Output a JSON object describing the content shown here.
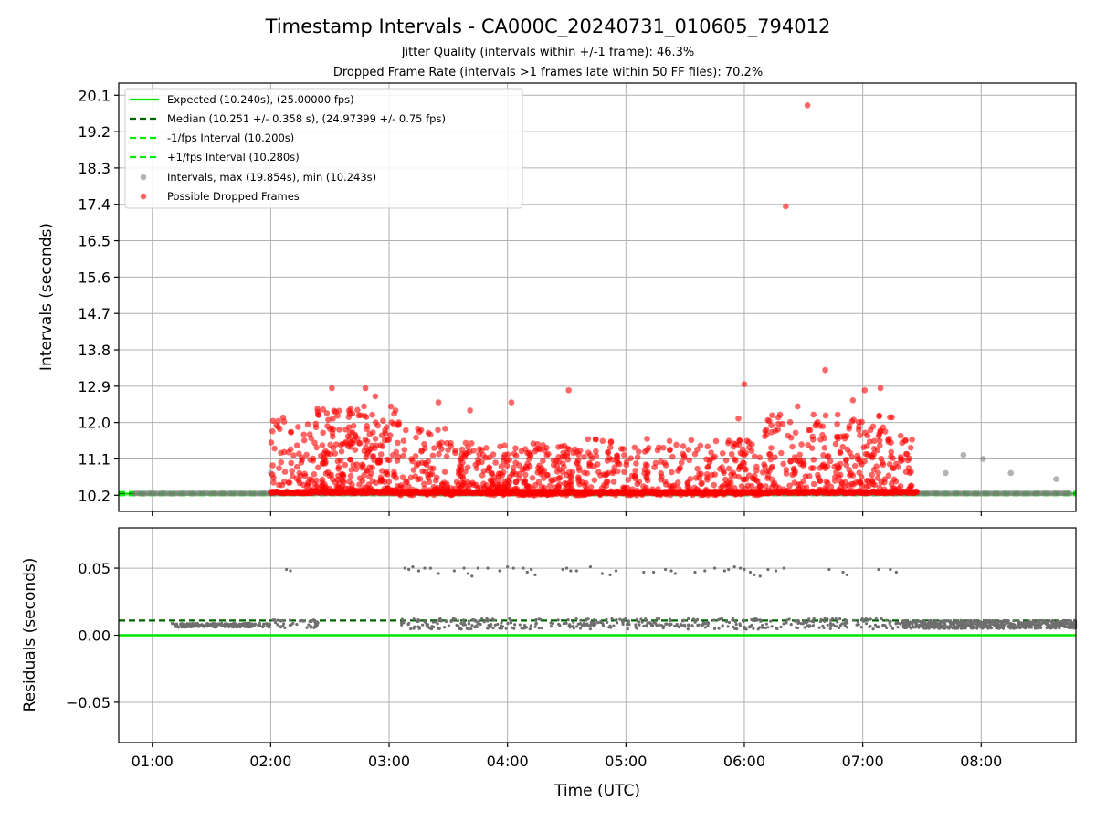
{
  "chart_data": [
    {
      "type": "scatter",
      "title": "Timestamp Intervals - CA000C_20240731_010605_794012",
      "subtitle_lines": [
        "Jitter Quality (intervals within +/-1 frame): 46.3%",
        "Dropped Frame Rate (intervals >1 frames late within 50 FF files): 70.2%"
      ],
      "xlabel": "",
      "ylabel": "Intervals (seconds)",
      "xlim": [
        "00:43",
        "08:48"
      ],
      "ylim": [
        9.8,
        20.4
      ],
      "y_ticks": [
        "10.2",
        "11.1",
        "12.0",
        "12.9",
        "13.8",
        "14.7",
        "15.6",
        "16.5",
        "17.4",
        "18.3",
        "19.2",
        "20.1"
      ],
      "x_ticks": [
        "01:00",
        "02:00",
        "03:00",
        "04:00",
        "05:00",
        "06:00",
        "07:00",
        "08:00"
      ],
      "grid": true,
      "legend_position": "top-left",
      "legend": [
        "Expected (10.240s), (25.00000 fps)",
        "Median (10.251 +/- 0.358 s), (24.97399 +/- 0.75 fps)",
        "-1/fps Interval (10.200s)",
        "+1/fps Interval (10.280s)",
        "Intervals, max (19.854s), min (10.243s)",
        "Possible Dropped Frames"
      ],
      "lines": {
        "expected": 10.24,
        "median": 10.251,
        "minus_1fps": 10.2,
        "plus_1fps": 10.28
      },
      "series": [
        {
          "name": "Intervals, max (19.854s), min (10.243s)",
          "color": "#808080",
          "points": [
            [
              "02:00",
              10.75
            ],
            [
              "07:42",
              10.75
            ],
            [
              "07:51",
              11.2
            ],
            [
              "08:01",
              11.1
            ],
            [
              "08:15",
              10.75
            ],
            [
              "08:38",
              10.6
            ]
          ],
          "baseline": {
            "from": "00:43",
            "to": "08:48",
            "value": 10.247
          }
        },
        {
          "name": "Possible Dropped Frames",
          "color": "#ff0000",
          "points": [
            [
              "06:32",
              19.85
            ],
            [
              "06:21",
              17.35
            ],
            [
              "06:41",
              13.3
            ],
            [
              "06:00",
              12.95
            ],
            [
              "04:31",
              12.8
            ],
            [
              "02:31",
              12.85
            ],
            [
              "02:48",
              12.85
            ],
            [
              "07:01",
              12.8
            ],
            [
              "07:09",
              12.85
            ],
            [
              "06:55",
              12.55
            ],
            [
              "03:25",
              12.5
            ],
            [
              "04:02",
              12.5
            ],
            [
              "02:53",
              12.65
            ],
            [
              "03:41",
              12.3
            ],
            [
              "06:27",
              12.4
            ],
            [
              "05:57",
              12.1
            ]
          ],
          "clusters": [
            {
              "from": "02:00",
              "to": "02:20",
              "y_low": 10.25,
              "y_high": 12.2,
              "count": 60
            },
            {
              "from": "02:20",
              "to": "03:05",
              "y_low": 10.3,
              "y_high": 12.4,
              "count": 260
            },
            {
              "from": "03:05",
              "to": "03:30",
              "y_low": 10.2,
              "y_high": 11.9,
              "count": 90
            },
            {
              "from": "03:30",
              "to": "04:40",
              "y_low": 10.2,
              "y_high": 11.5,
              "count": 320
            },
            {
              "from": "04:40",
              "to": "06:10",
              "y_low": 10.2,
              "y_high": 11.6,
              "count": 300
            },
            {
              "from": "06:10",
              "to": "07:15",
              "y_low": 10.25,
              "y_high": 12.2,
              "count": 260
            },
            {
              "from": "07:15",
              "to": "07:25",
              "y_low": 10.3,
              "y_high": 11.7,
              "count": 35
            }
          ],
          "baseline": {
            "from": "02:00",
            "to": "07:28",
            "value": 10.25
          }
        }
      ]
    },
    {
      "type": "scatter",
      "xlabel": "Time (UTC)",
      "ylabel": "Residuals (seconds)",
      "xlim": [
        "00:43",
        "08:48"
      ],
      "ylim": [
        -0.08,
        0.08
      ],
      "y_ticks": [
        "−0.05",
        "0.00",
        "0.05"
      ],
      "y_tick_values": [
        -0.05,
        0.0,
        0.05
      ],
      "x_ticks": [
        "01:00",
        "02:00",
        "03:00",
        "04:00",
        "05:00",
        "06:00",
        "07:00",
        "08:00"
      ],
      "grid": true,
      "lines": {
        "zero": 0.0,
        "median": 0.011
      },
      "series": [
        {
          "name": "residuals",
          "color": "#808080",
          "dense_bands": [
            {
              "from": "01:10",
              "to": "02:00",
              "center": 0.0075,
              "spread": 0.0015,
              "count": 200
            },
            {
              "from": "02:00",
              "to": "02:25",
              "center": 0.0085,
              "spread": 0.003,
              "count": 40
            },
            {
              "from": "03:05",
              "to": "07:20",
              "center": 0.0085,
              "spread": 0.004,
              "count": 420
            },
            {
              "from": "07:20",
              "to": "08:48",
              "center": 0.008,
              "spread": 0.003,
              "count": 600
            }
          ],
          "upper_points": [
            [
              "02:08",
              0.049
            ],
            [
              "02:10",
              0.048
            ],
            [
              "03:08",
              0.05
            ],
            [
              "03:10",
              0.049
            ],
            [
              "03:12",
              0.051
            ],
            [
              "03:15",
              0.048
            ],
            [
              "03:18",
              0.05
            ],
            [
              "03:21",
              0.05
            ],
            [
              "03:25",
              0.046
            ],
            [
              "03:33",
              0.048
            ],
            [
              "03:38",
              0.05
            ],
            [
              "03:40",
              0.046
            ],
            [
              "03:42",
              0.044
            ],
            [
              "03:45",
              0.05
            ],
            [
              "03:50",
              0.05
            ],
            [
              "03:56",
              0.048
            ],
            [
              "04:00",
              0.051
            ],
            [
              "04:03",
              0.05
            ],
            [
              "04:08",
              0.05
            ],
            [
              "04:10",
              0.047
            ],
            [
              "04:12",
              0.049
            ],
            [
              "04:14",
              0.045
            ],
            [
              "04:28",
              0.049
            ],
            [
              "04:30",
              0.05
            ],
            [
              "04:32",
              0.048
            ],
            [
              "04:35",
              0.048
            ],
            [
              "04:42",
              0.051
            ],
            [
              "04:48",
              0.046
            ],
            [
              "04:52",
              0.045
            ],
            [
              "04:55",
              0.048
            ],
            [
              "05:09",
              0.047
            ],
            [
              "05:14",
              0.047
            ],
            [
              "05:20",
              0.049
            ],
            [
              "05:23",
              0.048
            ],
            [
              "05:25",
              0.046
            ],
            [
              "05:35",
              0.047
            ],
            [
              "05:40",
              0.048
            ],
            [
              "05:45",
              0.05
            ],
            [
              "05:50",
              0.048
            ],
            [
              "05:52",
              0.049
            ],
            [
              "05:55",
              0.051
            ],
            [
              "05:58",
              0.05
            ],
            [
              "06:00",
              0.049
            ],
            [
              "06:03",
              0.047
            ],
            [
              "06:05",
              0.045
            ],
            [
              "06:08",
              0.044
            ],
            [
              "06:12",
              0.049
            ],
            [
              "06:16",
              0.048
            ],
            [
              "06:20",
              0.05
            ],
            [
              "06:43",
              0.049
            ],
            [
              "06:50",
              0.047
            ],
            [
              "06:52",
              0.045
            ],
            [
              "07:08",
              0.049
            ],
            [
              "07:14",
              0.049
            ],
            [
              "07:17",
              0.047
            ]
          ]
        }
      ]
    }
  ],
  "colors": {
    "expected": "#00e600",
    "median": "#006400",
    "fps_band": "#00ee00",
    "intervals": "#808080",
    "dropped": "#ff0000",
    "residual_points": "#6e6e6e"
  }
}
